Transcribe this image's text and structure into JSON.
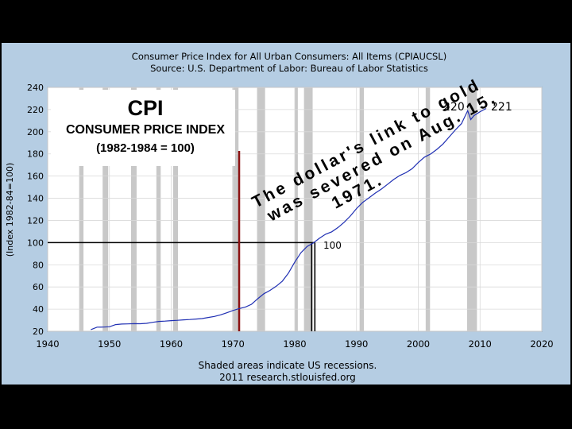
{
  "colors": {
    "slide_background": "#000000",
    "panel_background": "#b5cde3",
    "plot_background": "#ffffff",
    "recession_shading": "#c8c8c8",
    "series_line": "#1f2fb3",
    "marker_1971_line": "#8b1111",
    "text": "#000000"
  },
  "chart_data": {
    "type": "line",
    "title": "Consumer Price Index for All Urban Consumers: All Items (CPIAUCSL)",
    "subtitle": "Source: U.S. Department of Labor: Bureau of Labor Statistics",
    "ylabel": "(Index 1982-84=100)",
    "xlim": [
      1940,
      2020
    ],
    "ylim": [
      20,
      240
    ],
    "xticks": [
      1940,
      1950,
      1960,
      1970,
      1980,
      1990,
      2000,
      2010,
      2020
    ],
    "yticks": [
      20,
      40,
      60,
      80,
      100,
      120,
      140,
      160,
      180,
      200,
      220,
      240
    ],
    "grid": true,
    "series": [
      {
        "x": [
          1947,
          1948,
          1949,
          1950,
          1951,
          1952,
          1953,
          1954,
          1955,
          1956,
          1957,
          1958,
          1959,
          1960,
          1961,
          1962,
          1963,
          1964,
          1965,
          1966,
          1967,
          1968,
          1969,
          1970,
          1971,
          1972,
          1973,
          1974,
          1975,
          1976,
          1977,
          1978,
          1979,
          1980,
          1981,
          1982,
          1983,
          1984,
          1985,
          1986,
          1987,
          1988,
          1989,
          1990,
          1991,
          1992,
          1993,
          1994,
          1995,
          1996,
          1997,
          1998,
          1999,
          2000,
          2001,
          2002,
          2003,
          2004,
          2005,
          2006,
          2007,
          2008,
          2008.5,
          2009,
          2010,
          2011
        ],
        "values": [
          21.5,
          23.7,
          23.8,
          24.1,
          26.0,
          26.5,
          26.7,
          26.9,
          26.8,
          27.2,
          28.1,
          28.9,
          29.2,
          29.6,
          29.9,
          30.3,
          30.6,
          31.0,
          31.5,
          32.5,
          33.4,
          34.8,
          36.7,
          38.8,
          40.5,
          41.8,
          44.4,
          49.3,
          53.8,
          56.9,
          60.6,
          65.2,
          72.6,
          82.4,
          90.9,
          96.5,
          99.6,
          103.9,
          107.6,
          109.7,
          113.6,
          118.3,
          124.0,
          130.7,
          136.2,
          140.3,
          144.5,
          148.2,
          152.4,
          156.9,
          160.5,
          163.0,
          166.6,
          172.2,
          177.1,
          179.9,
          184.0,
          188.9,
          195.3,
          201.6,
          207.3,
          219.0,
          211.0,
          214.5,
          218.1,
          221.0
        ]
      }
    ],
    "recessions": [
      [
        1945.1,
        1945.8
      ],
      [
        1948.9,
        1949.8
      ],
      [
        1953.5,
        1954.4
      ],
      [
        1957.6,
        1958.3
      ],
      [
        1960.3,
        1961.1
      ],
      [
        1969.9,
        1970.9
      ],
      [
        1973.9,
        1975.2
      ],
      [
        1980.0,
        1980.5
      ],
      [
        1981.5,
        1982.9
      ],
      [
        1990.5,
        1991.2
      ],
      [
        2001.2,
        2001.9
      ],
      [
        2007.9,
        2009.5
      ]
    ],
    "annotations": {
      "value_220": "220",
      "value_221": "221",
      "value_100": "100",
      "cpi_heading": "CPI",
      "cpi_subheading": "CONSUMER PRICE INDEX",
      "cpi_base": "(1982-1984 = 100)",
      "gold_lines": [
        "The dollar's link to gold",
        "was severed on Aug. 15,",
        "1971."
      ],
      "marker_1971_year": 1971,
      "reference_level": 100,
      "reference_year": 1983
    },
    "footer": [
      "Shaded areas indicate US recessions.",
      "2011 research.stlouisfed.org"
    ]
  }
}
